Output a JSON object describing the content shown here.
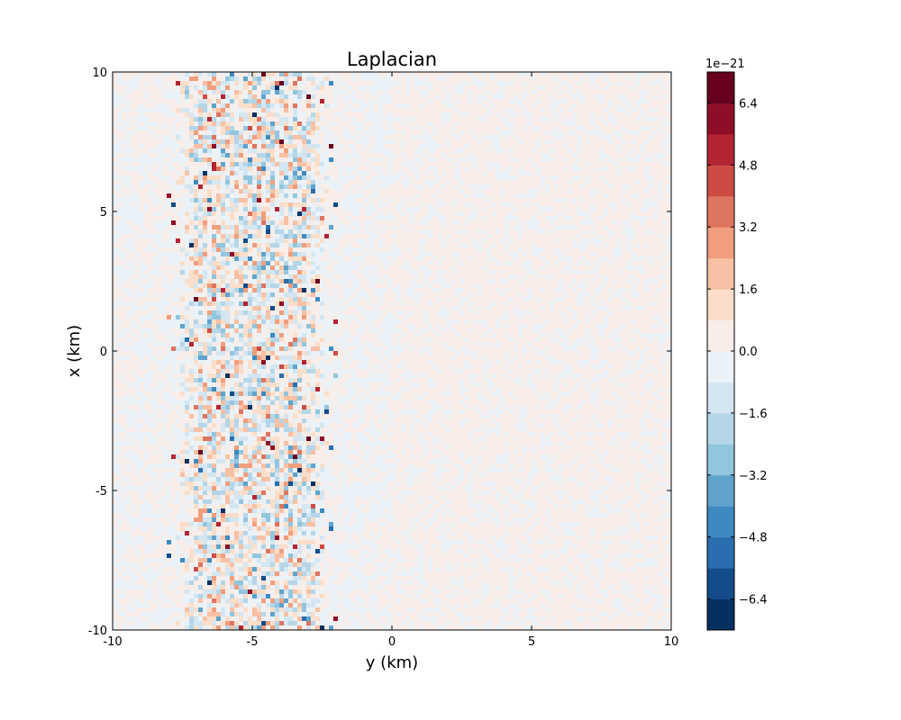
{
  "chart_data": {
    "type": "heatmap",
    "title": "Laplacian",
    "xlabel": "y (km)",
    "ylabel": "x (km)",
    "xlim": [
      -10,
      10
    ],
    "ylim": [
      -10,
      10
    ],
    "x_ticks": [
      "-10",
      "-5",
      "0",
      "5",
      "10"
    ],
    "y_ticks": [
      "10",
      "5",
      "0",
      "-5",
      "-10"
    ],
    "colormap": "RdBu_r",
    "colorbar": {
      "offset_label": "1e−21",
      "range": [
        -7.2,
        7.2
      ],
      "levels": [
        -7.2,
        -6.4,
        -5.6,
        -4.8,
        -4.0,
        -3.2,
        -2.4,
        -1.6,
        -0.8,
        0.0,
        0.8,
        1.6,
        2.4,
        3.2,
        4.0,
        4.8,
        5.6,
        6.4,
        7.2
      ],
      "tick_labels": [
        "6.4",
        "4.8",
        "3.2",
        "1.6",
        "0.0",
        "−1.6",
        "−3.2",
        "−4.8",
        "−6.4"
      ],
      "colors": [
        "#053061",
        "#134c88",
        "#2a6eb0",
        "#3d8ac0",
        "#5fa3cd",
        "#92c5de",
        "#b4d6e8",
        "#d4e6f1",
        "#ebf2f7",
        "#f8ede8",
        "#fadec9",
        "#f8c0a4",
        "#f09e7e",
        "#de7560",
        "#cc4c44",
        "#b42433",
        "#8f0e27",
        "#67001f"
      ]
    },
    "field_description": "noisy band of strong positive and negative values between y = -8 and y = -2 km; near-zero elsewhere",
    "active_band_y_km": [
      -8,
      -2
    ]
  }
}
